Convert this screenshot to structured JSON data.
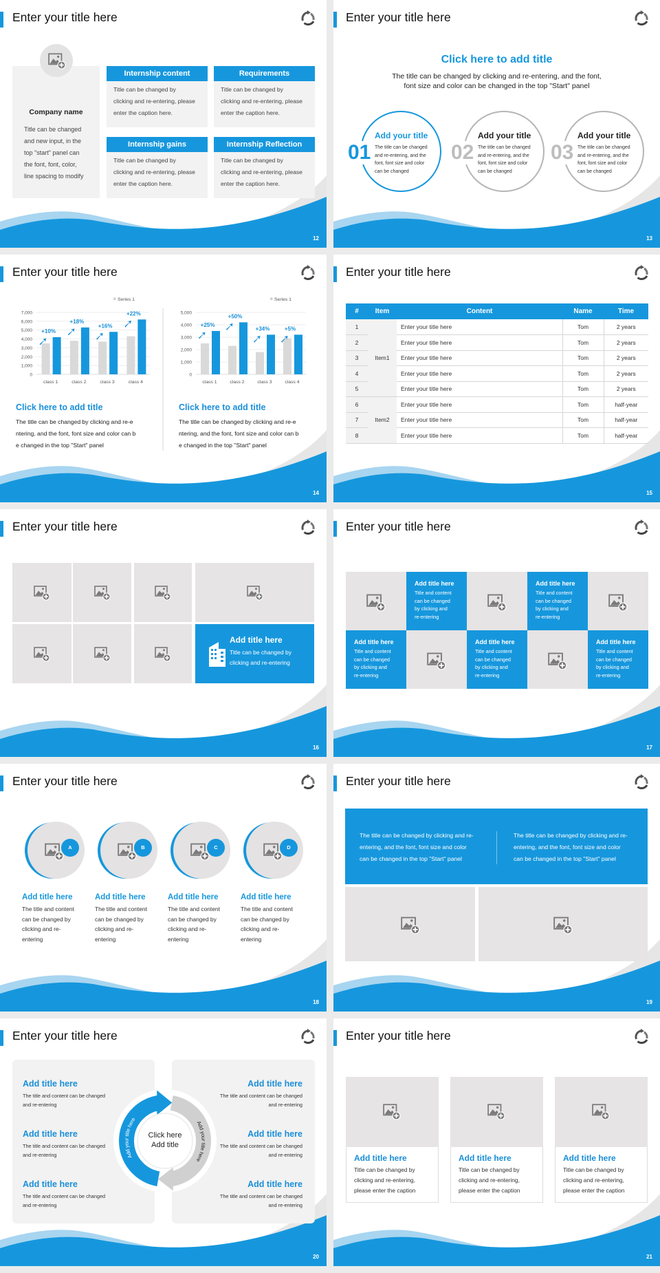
{
  "colors": {
    "accent": "#1697dd",
    "gray_fill": "#e6e4e4",
    "panel": "#f2f2f2",
    "text": "#333333"
  },
  "slides": [
    {
      "page": "12",
      "title": "Enter your title here",
      "company": {
        "name": "Company name",
        "lines": [
          "Title can be changed",
          "and new input, in the",
          "top \"start\" panel can",
          "the font, font, color,",
          "line spacing to modify"
        ]
      },
      "boxes": [
        {
          "header": "Internship content",
          "lines": [
            "Title can be changed by",
            "clicking and re-entering, please",
            "enter the caption here."
          ]
        },
        {
          "header": "Requirements",
          "lines": [
            "Title can be changed by",
            "clicking and re-entering, please",
            "enter the caption here."
          ]
        },
        {
          "header": "Internship gains",
          "lines": [
            "Title can be changed by",
            "clicking and re-entering, please",
            "enter the caption here."
          ]
        },
        {
          "header": "Internship Reflection",
          "lines": [
            "Title can be changed by",
            "clicking and re-entering, please",
            "enter the caption here."
          ]
        }
      ]
    },
    {
      "page": "13",
      "title": "Enter your title here",
      "heading": "Click here to add title",
      "sub": [
        "The title can be changed by clicking and re-entering, and the font,",
        "font size and color can be changed in the top \"Start\" panel"
      ],
      "items": [
        {
          "num": "01",
          "title": "Add your title",
          "active": true,
          "lines": [
            "The title can be changed",
            "and re-entering, and the",
            "font, font size and color",
            "can be changed"
          ]
        },
        {
          "num": "02",
          "title": "Add your title",
          "active": false,
          "lines": [
            "The title can be changed",
            "and re-entering, and the",
            "font, font size and color",
            "can be changed"
          ]
        },
        {
          "num": "03",
          "title": "Add your title",
          "active": false,
          "lines": [
            "The title can be changed",
            "and re-entering, and the",
            "font, font size and color",
            "can be changed"
          ]
        }
      ]
    },
    {
      "page": "14",
      "title": "Enter your title here",
      "texts": [
        {
          "title": "Click here to add title",
          "lines": [
            "The title can be changed by clicking and re-e",
            "ntering, and the font, font size and color can b",
            "e changed in the top \"Start\" panel"
          ]
        },
        {
          "title": "Click here to add title",
          "lines": [
            "The title can be changed by clicking and re-e",
            "ntering, and the font, font size and color can b",
            "e changed in the top \"Start\" panel"
          ]
        }
      ]
    },
    {
      "page": "15",
      "title": "Enter your title here",
      "table": {
        "headers": [
          "#",
          "Item",
          "Content",
          "Name",
          "Time"
        ],
        "groups": [
          {
            "item": "Item1",
            "rows": [
              [
                "1",
                "Enter your title here",
                "Tom",
                "2 years"
              ],
              [
                "2",
                "Enter your title here",
                "Tom",
                "2 years"
              ],
              [
                "3",
                "Enter your title here",
                "Tom",
                "2 years"
              ],
              [
                "4",
                "Enter your title here",
                "Tom",
                "2 years"
              ],
              [
                "5",
                "Enter your title here",
                "Tom",
                "2 years"
              ]
            ]
          },
          {
            "item": "Item2",
            "rows": [
              [
                "6",
                "Enter your title here",
                "Tom",
                "half-year"
              ],
              [
                "7",
                "Enter your title here",
                "Tom",
                "half-year"
              ],
              [
                "8",
                "Enter your title here",
                "Tom",
                "half-year"
              ]
            ]
          }
        ]
      }
    },
    {
      "page": "16",
      "title": "Enter your title here",
      "feature": {
        "title": "Add title here",
        "lines": [
          "Title can be changed by",
          "clicking and re-entering"
        ],
        "icon": "building-icon"
      }
    },
    {
      "page": "17",
      "title": "Enter your title here",
      "cells": [
        {
          "type": "image"
        },
        {
          "type": "text",
          "title": "Add title here",
          "lines": [
            "Title and content",
            "can be changed",
            "by clicking and",
            "re-entering"
          ]
        },
        {
          "type": "image"
        },
        {
          "type": "text",
          "title": "Add title here",
          "lines": [
            "Title and content",
            "can be changed",
            "by clicking and",
            "re-entering"
          ]
        },
        {
          "type": "image"
        },
        {
          "type": "text",
          "title": "Add title here",
          "lines": [
            "Title and content",
            "can be changed",
            "by clicking and",
            "re-entering"
          ]
        },
        {
          "type": "image"
        },
        {
          "type": "text",
          "title": "Add title here",
          "lines": [
            "Title and content",
            "can be changed",
            "by clicking and",
            "re-entering"
          ]
        },
        {
          "type": "image"
        },
        {
          "type": "text",
          "title": "Add title here",
          "lines": [
            "Title and content",
            "can be changed",
            "by clicking and",
            "re-entering"
          ]
        }
      ]
    },
    {
      "page": "18",
      "title": "Enter your title here",
      "items": [
        {
          "badge": "A",
          "title": "Add title here",
          "lines": [
            "The title and content",
            "can be changed by",
            "clicking and re-",
            "entering"
          ]
        },
        {
          "badge": "B",
          "title": "Add title here",
          "lines": [
            "The title and content",
            "can be changed by",
            "clicking and re-",
            "entering"
          ]
        },
        {
          "badge": "C",
          "title": "Add title here",
          "lines": [
            "The title and content",
            "can be changed by",
            "clicking and re-",
            "entering"
          ]
        },
        {
          "badge": "D",
          "title": "Add title here",
          "lines": [
            "The title and content",
            "can be changed by",
            "clicking and re-",
            "entering"
          ]
        }
      ]
    },
    {
      "page": "19",
      "title": "Enter your title here",
      "texts": [
        [
          "The title can be changed by clicking and re-",
          "entering, and the font, font size and color",
          "can be changed in the top \"Start\" panel"
        ],
        [
          "The title can be changed by clicking and re-",
          "entering, and the font, font size and color",
          "can be changed in the top \"Start\" panel"
        ]
      ]
    },
    {
      "page": "20",
      "title": "Enter your title here",
      "center": [
        "Click here",
        "Add title"
      ],
      "arc_left": "Add your title here",
      "arc_right": "Add your title here",
      "items": [
        {
          "title": "Add title here",
          "lines": [
            "The title and content can be changed",
            "and re-entering"
          ]
        },
        {
          "title": "Add title here",
          "lines": [
            "The title and content can be changed",
            "and re-entering"
          ]
        },
        {
          "title": "Add title here",
          "lines": [
            "The title and content can be changed",
            "and re-entering"
          ]
        },
        {
          "title": "Add title here",
          "lines": [
            "The title and content can be changed",
            "and re-entering"
          ]
        },
        {
          "title": "Add title here",
          "lines": [
            "The title and content can be changed",
            "and re-entering"
          ]
        },
        {
          "title": "Add title here",
          "lines": [
            "The title and content can be changed",
            "and re-entering"
          ]
        }
      ]
    },
    {
      "page": "21",
      "title": "Enter your title here",
      "cards": [
        {
          "title": "Add title here",
          "lines": [
            "Title can be changed by",
            "clicking and re-entering,",
            "please enter the caption"
          ]
        },
        {
          "title": "Add title here",
          "lines": [
            "Title can be changed by",
            "clicking and re-entering,",
            "please enter the caption"
          ]
        },
        {
          "title": "Add title here",
          "lines": [
            "Title can be changed by",
            "clicking and re-entering,",
            "please enter the caption"
          ]
        }
      ]
    }
  ],
  "chart_data": [
    {
      "type": "bar",
      "categories": [
        "class 1",
        "class 2",
        "class 3",
        "class 4"
      ],
      "ylim": [
        0,
        7000
      ],
      "yticks": [
        "0",
        "1,000",
        "2,000",
        "3,000",
        "4,000",
        "5,000",
        "6,000",
        "7,000"
      ],
      "legend": "Series 1",
      "legend_position": "top-right",
      "grid": true,
      "series": [
        {
          "name": "Series 1",
          "color": "#d9d9d9",
          "values": [
            3500,
            3800,
            3700,
            4300
          ]
        },
        {
          "color": "#1697dd",
          "values": [
            4200,
            5300,
            4800,
            6200
          ]
        }
      ],
      "annotations": [
        "+10%",
        "+18%",
        "+16%",
        "+22%"
      ]
    },
    {
      "type": "bar",
      "categories": [
        "class 1",
        "class 2",
        "class 3",
        "class 4"
      ],
      "ylim": [
        0,
        5000
      ],
      "yticks": [
        "0",
        "1,000",
        "2,000",
        "3,000",
        "4,000",
        "5,000"
      ],
      "legend": "Series 1",
      "legend_position": "top-right",
      "grid": true,
      "series": [
        {
          "name": "Series 1",
          "color": "#d9d9d9",
          "values": [
            2500,
            2300,
            1800,
            2900
          ]
        },
        {
          "color": "#1697dd",
          "values": [
            3500,
            4200,
            3200,
            3200
          ]
        }
      ],
      "annotations": [
        "+25%",
        "+50%",
        "+34%",
        "+5%"
      ]
    }
  ]
}
